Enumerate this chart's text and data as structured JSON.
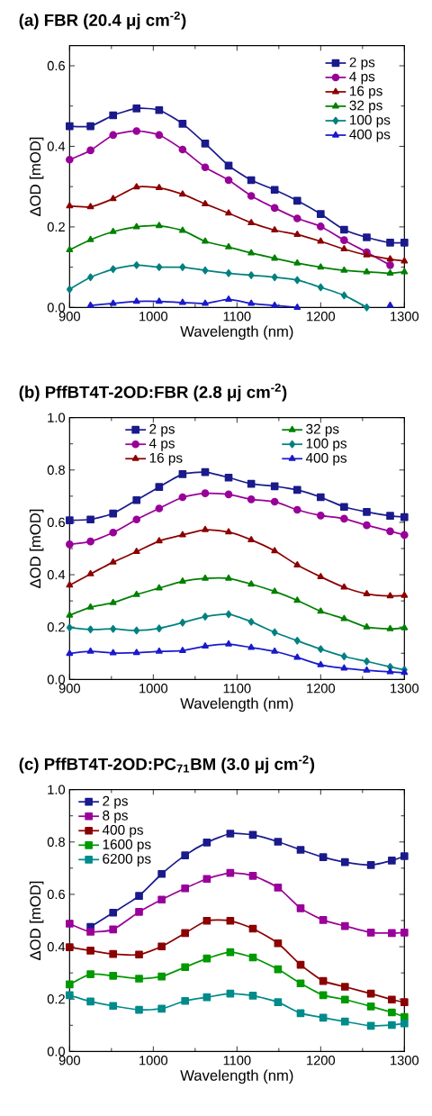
{
  "chart_data": [
    {
      "type": "line",
      "title": "(a) FBR (20.4 μj cm$^{-2}$)",
      "xlabel": "Wavelength (nm)",
      "ylabel": "ΔOD [mOD]",
      "x": [
        900,
        925,
        952,
        980,
        1007,
        1035,
        1062,
        1090,
        1117,
        1145,
        1172,
        1200,
        1228,
        1255,
        1283,
        1300
      ],
      "xlim": [
        900,
        1300
      ],
      "xticks": [
        900,
        1000,
        1100,
        1200,
        1300
      ],
      "ylim": [
        0,
        0.65
      ],
      "yticks": [
        {
          "value": 0,
          "label": "0.0"
        },
        {
          "value": 0.2,
          "label": "0.2"
        },
        {
          "value": 0.4,
          "label": "0.4"
        },
        {
          "value": 0.6,
          "label": "0.6"
        }
      ],
      "legend": "top right",
      "line_style": "solid",
      "series": [
        {
          "name": "2 ps",
          "color": "#1a1a8c",
          "marker": "square",
          "values": [
            0.45,
            0.45,
            0.477,
            0.494,
            0.49,
            0.456,
            0.407,
            0.352,
            0.316,
            0.292,
            0.265,
            0.232,
            0.193,
            0.174,
            0.161,
            0.161
          ]
        },
        {
          "name": "4 ps",
          "color": "#990099",
          "marker": "circle",
          "values": [
            0.367,
            0.39,
            0.428,
            0.438,
            0.428,
            0.392,
            0.348,
            0.316,
            0.277,
            0.247,
            0.221,
            0.201,
            0.167,
            0.137,
            0.105,
            null
          ]
        },
        {
          "name": "16 ps",
          "color": "#8b0000",
          "marker": "triangle",
          "values": [
            0.252,
            0.25,
            0.27,
            0.299,
            0.297,
            0.281,
            0.257,
            0.234,
            0.21,
            0.192,
            0.181,
            0.164,
            0.145,
            0.13,
            0.12,
            0.115
          ]
        },
        {
          "name": "32 ps",
          "color": "#008000",
          "marker": "triangle",
          "values": [
            0.143,
            0.168,
            0.188,
            0.2,
            0.203,
            0.191,
            0.164,
            0.15,
            0.135,
            0.122,
            0.11,
            0.1,
            0.092,
            0.088,
            0.085,
            0.088
          ]
        },
        {
          "name": "100 ps",
          "color": "#008080",
          "marker": "diamond",
          "values": [
            0.045,
            0.075,
            0.095,
            0.105,
            0.1,
            0.1,
            0.092,
            0.085,
            0.08,
            0.075,
            0.068,
            0.05,
            0.03,
            0.0,
            null,
            null
          ]
        },
        {
          "name": "400 ps",
          "color": "#1a1acc",
          "marker": "triangle",
          "values": [
            null,
            0.005,
            0.01,
            0.015,
            0.015,
            0.012,
            0.01,
            0.02,
            0.01,
            0.005,
            0.0,
            null,
            null,
            null,
            0.005,
            null
          ]
        }
      ]
    },
    {
      "type": "line",
      "title": "(b) PffBT4T-2OD:FBR (2.8 μj cm$^{-2}$)",
      "xlabel": "Wavelength (nm)",
      "ylabel": "ΔOD [mOD]",
      "x": [
        900,
        925,
        952,
        980,
        1007,
        1035,
        1062,
        1090,
        1117,
        1145,
        1172,
        1200,
        1228,
        1255,
        1283,
        1300
      ],
      "xlim": [
        900,
        1300
      ],
      "xticks": [
        900,
        1000,
        1100,
        1200,
        1300
      ],
      "ylim": [
        0,
        1
      ],
      "yticks": [
        {
          "value": 0,
          "label": "0.0"
        },
        {
          "value": 0.2,
          "label": "0.2"
        },
        {
          "value": 0.4,
          "label": "0.4"
        },
        {
          "value": 0.6,
          "label": "0.6"
        },
        {
          "value": 0.8,
          "label": "0.8"
        },
        {
          "value": 1,
          "label": "1.0"
        }
      ],
      "legend": "top",
      "line_style": "solid",
      "series": [
        {
          "name": "2 ps",
          "color": "#1a1a8c",
          "marker": "square",
          "values": [
            0.608,
            0.611,
            0.634,
            0.685,
            0.735,
            0.784,
            0.792,
            0.771,
            0.747,
            0.738,
            0.724,
            0.696,
            0.659,
            0.64,
            0.625,
            0.62
          ]
        },
        {
          "name": "4 ps",
          "color": "#990099",
          "marker": "circle",
          "values": [
            0.516,
            0.527,
            0.561,
            0.611,
            0.653,
            0.696,
            0.711,
            0.707,
            0.688,
            0.679,
            0.648,
            0.626,
            0.614,
            0.589,
            0.566,
            0.552
          ]
        },
        {
          "name": "16 ps",
          "color": "#8b0000",
          "marker": "triangle",
          "values": [
            0.36,
            0.403,
            0.448,
            0.488,
            0.529,
            0.552,
            0.572,
            0.563,
            0.533,
            0.491,
            0.437,
            0.392,
            0.352,
            0.327,
            0.319,
            0.321
          ]
        },
        {
          "name": "32 ps",
          "color": "#008000",
          "marker": "triangle",
          "values": [
            0.245,
            0.276,
            0.293,
            0.324,
            0.349,
            0.375,
            0.386,
            0.386,
            0.364,
            0.336,
            0.302,
            0.26,
            0.232,
            0.2,
            0.193,
            0.197
          ]
        },
        {
          "name": "100 ps",
          "color": "#008080",
          "marker": "diamond",
          "values": [
            0.198,
            0.191,
            0.193,
            0.187,
            0.195,
            0.217,
            0.24,
            0.249,
            0.22,
            0.18,
            0.148,
            0.116,
            0.088,
            0.069,
            0.048,
            0.037
          ]
        },
        {
          "name": "400 ps",
          "color": "#1a1acc",
          "marker": "triangle",
          "values": [
            0.099,
            0.107,
            0.101,
            0.102,
            0.107,
            0.11,
            0.127,
            0.135,
            0.122,
            0.107,
            0.084,
            0.056,
            0.043,
            0.035,
            0.029,
            0.026
          ]
        }
      ]
    },
    {
      "type": "line",
      "title": "(c) PffBT4T-2OD:PC$_{71}$BM (3.0 μj cm$^{-2}$)",
      "xlabel": "Wavelength (nm)",
      "ylabel": "ΔOD [mOD]",
      "x": [
        900,
        925,
        952,
        983,
        1010,
        1038,
        1064,
        1092,
        1119,
        1149,
        1176,
        1203,
        1229,
        1260,
        1285,
        1300
      ],
      "xlim": [
        900,
        1300
      ],
      "xticks": [
        900,
        1000,
        1100,
        1200,
        1300
      ],
      "ylim": [
        0,
        1
      ],
      "yticks": [
        {
          "value": 0,
          "label": "0.0"
        },
        {
          "value": 0.2,
          "label": "0.2"
        },
        {
          "value": 0.4,
          "label": "0.4"
        },
        {
          "value": 0.6,
          "label": "0.6"
        },
        {
          "value": 0.8,
          "label": "0.8"
        },
        {
          "value": 1,
          "label": "1.0"
        }
      ],
      "legend": "top left",
      "marker": "square",
      "line_style": "solid",
      "series": [
        {
          "name": "2 ps",
          "color": "#1a1a8c",
          "values": [
            null,
            0.476,
            0.53,
            0.594,
            0.678,
            0.749,
            0.798,
            0.832,
            0.827,
            0.801,
            0.77,
            0.742,
            0.723,
            0.712,
            0.729,
            0.746
          ]
        },
        {
          "name": "8 ps",
          "color": "#990099",
          "values": [
            0.488,
            0.457,
            0.466,
            0.533,
            0.58,
            0.623,
            0.659,
            0.682,
            0.671,
            0.626,
            0.547,
            0.502,
            0.479,
            0.454,
            0.452,
            0.454
          ]
        },
        {
          "name": "400 ps",
          "color": "#8b0000",
          "values": [
            0.398,
            0.385,
            0.372,
            0.37,
            0.401,
            0.452,
            0.499,
            0.499,
            0.469,
            0.413,
            0.331,
            0.269,
            0.247,
            0.221,
            0.198,
            0.188
          ]
        },
        {
          "name": "1600 ps",
          "color": "#009900",
          "values": [
            0.256,
            0.295,
            0.289,
            0.278,
            0.286,
            0.322,
            0.355,
            0.379,
            0.359,
            0.314,
            0.26,
            0.215,
            0.198,
            0.172,
            0.149,
            0.132
          ]
        },
        {
          "name": "6200 ps",
          "color": "#008b8b",
          "values": [
            0.215,
            0.191,
            0.174,
            0.159,
            0.163,
            0.193,
            0.207,
            0.221,
            0.213,
            0.188,
            0.146,
            0.129,
            0.114,
            0.098,
            0.101,
            0.107
          ]
        }
      ]
    }
  ]
}
